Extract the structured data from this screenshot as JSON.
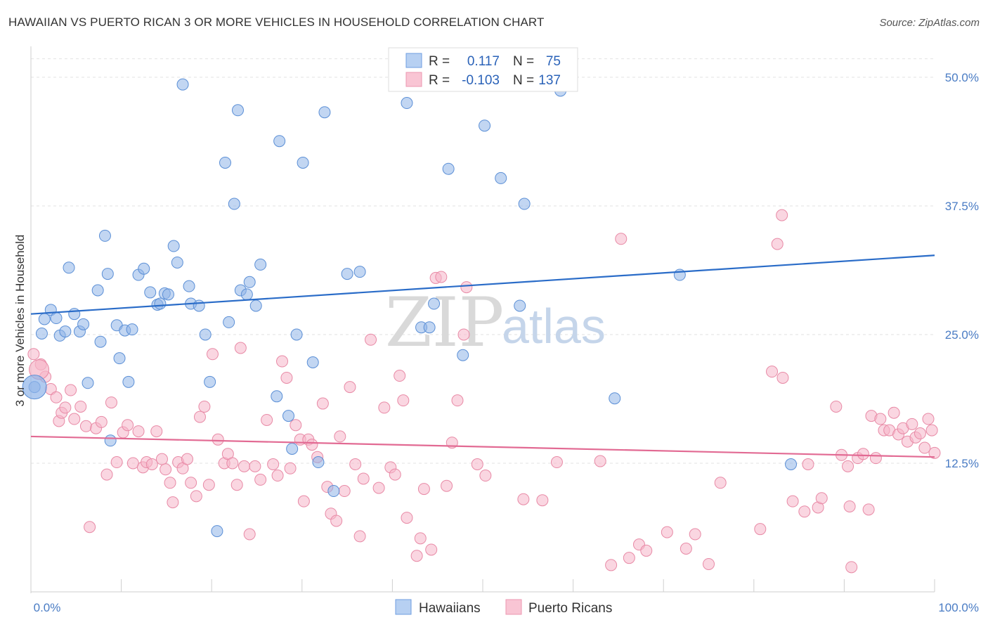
{
  "title": "HAWAIIAN VS PUERTO RICAN 3 OR MORE VEHICLES IN HOUSEHOLD CORRELATION CHART",
  "source": "Source: ZipAtlas.com",
  "watermark": {
    "part1": "ZIP",
    "part2": "atlas"
  },
  "chart_data": {
    "type": "scatter",
    "xlabel": "",
    "ylabel": "3 or more Vehicles in Household",
    "xlim": [
      0,
      100
    ],
    "ylim": [
      0,
      53
    ],
    "x_tick_labels": [
      {
        "value": 0,
        "label": "0.0%"
      },
      {
        "value": 100,
        "label": "100.0%"
      }
    ],
    "y_ticks": [
      {
        "value": 12.5,
        "label": "12.5%"
      },
      {
        "value": 25.0,
        "label": "25.0%"
      },
      {
        "value": 37.5,
        "label": "37.5%"
      },
      {
        "value": 50.0,
        "label": "50.0%"
      }
    ],
    "x_minor_ticks": [
      0,
      10,
      20,
      30,
      40,
      50,
      60,
      70,
      80,
      90,
      100
    ],
    "grid": "horizontal dashed",
    "legend": {
      "placement": "top-center",
      "entries": [
        {
          "series": "Hawaiians",
          "r_label": "R =",
          "r": "0.117",
          "n_label": "N =",
          "n": "75"
        },
        {
          "series": "Puerto Ricans",
          "r_label": "R =",
          "r": "-0.103",
          "n_label": "N =",
          "n": "137"
        }
      ]
    },
    "series": [
      {
        "name": "Hawaiians",
        "color": "#8fb4e8",
        "stroke": "#5b8fd6",
        "trend_color": "#2a6cc8",
        "trend": {
          "x": [
            0,
            100
          ],
          "y": [
            27.0,
            32.7
          ]
        },
        "points": [
          [
            1.2,
            25.1
          ],
          [
            1.5,
            26.5
          ],
          [
            2.2,
            27.4
          ],
          [
            2.8,
            26.6
          ],
          [
            3.2,
            24.9
          ],
          [
            3.8,
            25.3
          ],
          [
            4.2,
            31.5
          ],
          [
            4.8,
            27.0
          ],
          [
            5.4,
            25.3
          ],
          [
            5.8,
            26.0
          ],
          [
            6.3,
            20.3
          ],
          [
            7.4,
            29.3
          ],
          [
            7.7,
            24.3
          ],
          [
            8.2,
            34.6
          ],
          [
            8.5,
            30.9
          ],
          [
            8.8,
            14.7
          ],
          [
            9.5,
            25.9
          ],
          [
            9.8,
            22.7
          ],
          [
            10.4,
            25.4
          ],
          [
            10.8,
            20.4
          ],
          [
            11.2,
            25.5
          ],
          [
            11.9,
            30.8
          ],
          [
            12.5,
            31.4
          ],
          [
            13.2,
            29.1
          ],
          [
            14.0,
            27.9
          ],
          [
            14.3,
            28.0
          ],
          [
            14.8,
            29.0
          ],
          [
            15.2,
            28.9
          ],
          [
            15.8,
            33.6
          ],
          [
            16.2,
            32.0
          ],
          [
            16.8,
            49.3
          ],
          [
            17.5,
            29.7
          ],
          [
            17.7,
            28.0
          ],
          [
            18.6,
            27.8
          ],
          [
            19.3,
            25.0
          ],
          [
            19.8,
            20.4
          ],
          [
            20.6,
            5.9
          ],
          [
            21.5,
            41.7
          ],
          [
            21.9,
            26.2
          ],
          [
            22.5,
            37.7
          ],
          [
            22.9,
            46.8
          ],
          [
            23.2,
            29.3
          ],
          [
            23.9,
            28.9
          ],
          [
            24.2,
            30.1
          ],
          [
            24.9,
            27.8
          ],
          [
            25.4,
            31.8
          ],
          [
            27.2,
            19.0
          ],
          [
            27.5,
            43.8
          ],
          [
            28.5,
            17.1
          ],
          [
            28.9,
            13.9
          ],
          [
            29.4,
            25.0
          ],
          [
            30.1,
            41.7
          ],
          [
            31.2,
            22.3
          ],
          [
            31.8,
            12.6
          ],
          [
            32.5,
            46.6
          ],
          [
            33.5,
            9.8
          ],
          [
            35.0,
            30.9
          ],
          [
            36.4,
            31.1
          ],
          [
            41.6,
            47.5
          ],
          [
            43.2,
            25.7
          ],
          [
            44.1,
            25.7
          ],
          [
            44.6,
            28.0
          ],
          [
            46.2,
            41.1
          ],
          [
            47.8,
            23.0
          ],
          [
            50.2,
            45.3
          ],
          [
            52.0,
            40.2
          ],
          [
            54.1,
            27.8
          ],
          [
            54.6,
            37.7
          ],
          [
            58.6,
            48.7
          ],
          [
            64.6,
            18.8
          ],
          [
            71.8,
            30.8
          ],
          [
            84.1,
            12.4
          ],
          [
            0.4,
            19.9
          ]
        ],
        "point_radius": 8,
        "large_point": {
          "x": 0.4,
          "y": 19.9,
          "radius": 17
        }
      },
      {
        "name": "Puerto Ricans",
        "color": "#f5b5c8",
        "stroke": "#e88aa6",
        "trend_color": "#e26a93",
        "trend": {
          "x": [
            0,
            100
          ],
          "y": [
            15.1,
            13.1
          ]
        },
        "points": [
          [
            0.3,
            23.1
          ],
          [
            1.1,
            22.1
          ],
          [
            1.6,
            20.9
          ],
          [
            2.2,
            19.7
          ],
          [
            2.8,
            18.9
          ],
          [
            3.1,
            16.6
          ],
          [
            3.4,
            17.4
          ],
          [
            3.8,
            17.9
          ],
          [
            4.4,
            19.6
          ],
          [
            4.8,
            16.8
          ],
          [
            5.5,
            18.0
          ],
          [
            6.1,
            16.1
          ],
          [
            6.5,
            6.3
          ],
          [
            7.2,
            15.9
          ],
          [
            7.8,
            16.5
          ],
          [
            8.4,
            11.4
          ],
          [
            8.9,
            18.4
          ],
          [
            9.5,
            12.6
          ],
          [
            10.2,
            15.5
          ],
          [
            10.7,
            16.2
          ],
          [
            11.3,
            12.5
          ],
          [
            11.9,
            15.6
          ],
          [
            12.4,
            12.1
          ],
          [
            12.8,
            12.6
          ],
          [
            13.4,
            12.4
          ],
          [
            13.9,
            15.6
          ],
          [
            14.5,
            12.9
          ],
          [
            14.9,
            11.9
          ],
          [
            15.4,
            10.6
          ],
          [
            15.7,
            8.7
          ],
          [
            16.3,
            12.6
          ],
          [
            16.8,
            12.0
          ],
          [
            17.3,
            12.9
          ],
          [
            17.7,
            10.6
          ],
          [
            18.3,
            9.3
          ],
          [
            18.7,
            17.0
          ],
          [
            19.2,
            18.0
          ],
          [
            19.7,
            10.4
          ],
          [
            20.1,
            23.1
          ],
          [
            20.7,
            14.8
          ],
          [
            21.4,
            12.5
          ],
          [
            21.8,
            13.4
          ],
          [
            22.3,
            12.5
          ],
          [
            22.8,
            10.4
          ],
          [
            23.2,
            23.7
          ],
          [
            23.6,
            12.2
          ],
          [
            24.2,
            5.6
          ],
          [
            24.8,
            12.2
          ],
          [
            25.4,
            10.9
          ],
          [
            26.1,
            16.7
          ],
          [
            26.8,
            12.4
          ],
          [
            27.3,
            11.3
          ],
          [
            27.8,
            22.4
          ],
          [
            28.3,
            20.8
          ],
          [
            28.7,
            12.0
          ],
          [
            29.3,
            16.2
          ],
          [
            29.8,
            14.8
          ],
          [
            30.2,
            8.8
          ],
          [
            30.7,
            14.8
          ],
          [
            31.1,
            14.3
          ],
          [
            31.7,
            13.1
          ],
          [
            32.3,
            18.3
          ],
          [
            32.8,
            10.2
          ],
          [
            33.2,
            7.6
          ],
          [
            33.8,
            6.9
          ],
          [
            34.2,
            15.1
          ],
          [
            34.7,
            9.8
          ],
          [
            35.3,
            19.9
          ],
          [
            35.9,
            12.4
          ],
          [
            36.4,
            5.4
          ],
          [
            36.8,
            11.0
          ],
          [
            37.6,
            24.5
          ],
          [
            38.5,
            10.1
          ],
          [
            39.1,
            17.9
          ],
          [
            39.8,
            12.1
          ],
          [
            40.3,
            11.4
          ],
          [
            40.8,
            21.0
          ],
          [
            41.2,
            18.6
          ],
          [
            41.6,
            7.2
          ],
          [
            42.7,
            3.5
          ],
          [
            43.1,
            5.2
          ],
          [
            43.5,
            10.0
          ],
          [
            44.3,
            4.1
          ],
          [
            44.8,
            30.5
          ],
          [
            45.4,
            30.6
          ],
          [
            46.0,
            10.3
          ],
          [
            46.6,
            14.5
          ],
          [
            47.2,
            18.6
          ],
          [
            47.9,
            25.0
          ],
          [
            48.2,
            29.6
          ],
          [
            49.4,
            12.4
          ],
          [
            50.3,
            11.3
          ],
          [
            54.5,
            9.0
          ],
          [
            56.6,
            8.9
          ],
          [
            58.2,
            12.6
          ],
          [
            63.0,
            12.7
          ],
          [
            64.2,
            2.6
          ],
          [
            65.3,
            34.3
          ],
          [
            66.2,
            3.3
          ],
          [
            67.3,
            4.6
          ],
          [
            68.1,
            4.0
          ],
          [
            70.4,
            5.8
          ],
          [
            72.5,
            4.2
          ],
          [
            73.5,
            5.6
          ],
          [
            75.0,
            2.7
          ],
          [
            76.3,
            10.6
          ],
          [
            80.7,
            6.1
          ],
          [
            82.0,
            21.4
          ],
          [
            82.6,
            33.8
          ],
          [
            83.1,
            36.6
          ],
          [
            84.3,
            8.8
          ],
          [
            85.6,
            7.8
          ],
          [
            87.1,
            8.2
          ],
          [
            87.5,
            9.1
          ],
          [
            89.1,
            18.0
          ],
          [
            89.7,
            13.3
          ],
          [
            90.4,
            12.2
          ],
          [
            90.8,
            2.4
          ],
          [
            91.5,
            13.0
          ],
          [
            92.1,
            13.4
          ],
          [
            93.0,
            17.1
          ],
          [
            93.5,
            13.0
          ],
          [
            94.0,
            16.8
          ],
          [
            94.4,
            15.7
          ],
          [
            95.0,
            15.7
          ],
          [
            95.5,
            17.4
          ],
          [
            96.0,
            15.3
          ],
          [
            96.5,
            15.9
          ],
          [
            97.0,
            14.6
          ],
          [
            97.5,
            16.3
          ],
          [
            97.9,
            15.0
          ],
          [
            98.4,
            15.4
          ],
          [
            98.9,
            14.0
          ],
          [
            99.3,
            16.8
          ],
          [
            99.7,
            15.7
          ],
          [
            100.0,
            13.5
          ],
          [
            90.6,
            8.3
          ],
          [
            92.7,
            8.0
          ],
          [
            83.2,
            20.8
          ],
          [
            86.0,
            12.4
          ]
        ],
        "point_radius": 8,
        "large_point": {
          "x": 0.9,
          "y": 21.6,
          "radius": 14
        }
      }
    ]
  }
}
